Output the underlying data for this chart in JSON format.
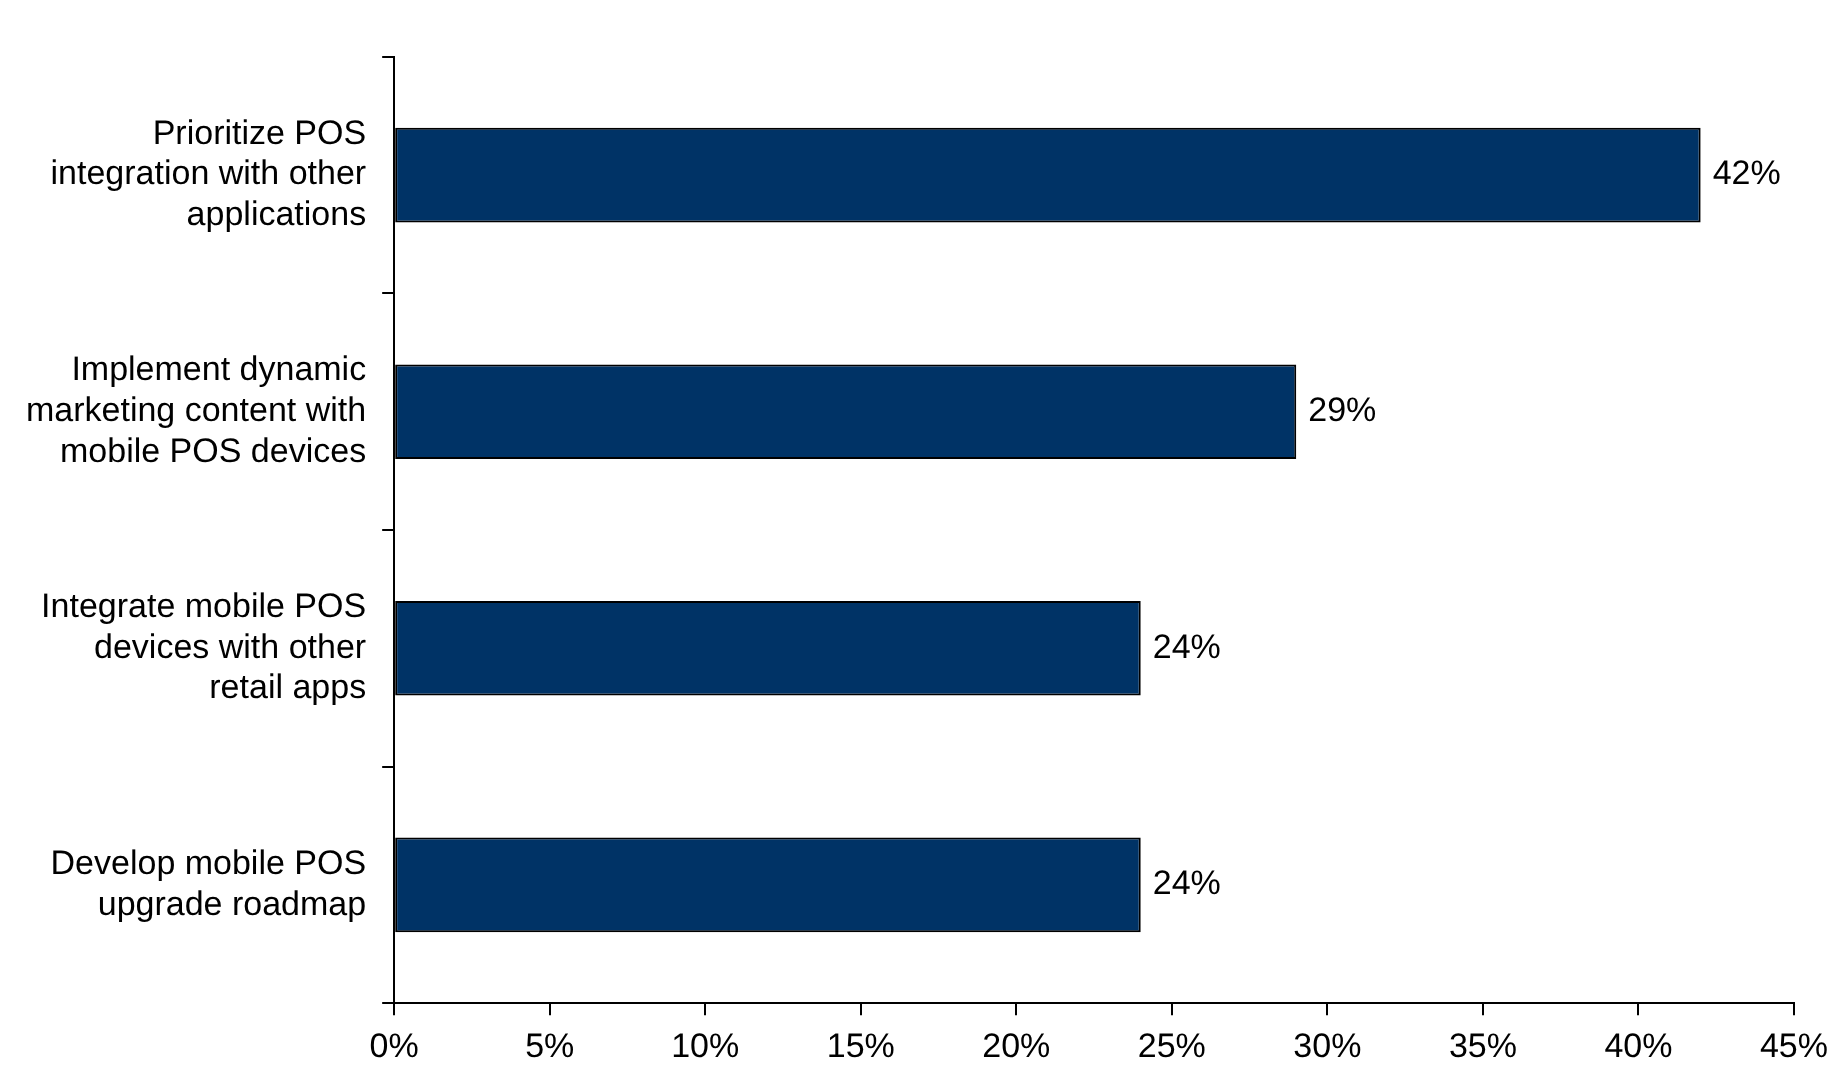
{
  "chart_data": {
    "type": "bar",
    "orientation": "horizontal",
    "categories": [
      "Prioritize POS integration with other applications",
      "Implement dynamic marketing content with mobile POS devices",
      "Integrate mobile POS devices with other retail apps",
      "Develop mobile POS upgrade roadmap"
    ],
    "values": [
      42,
      29,
      24,
      24
    ],
    "value_labels": [
      "42%",
      "29%",
      "24%",
      "24%"
    ],
    "color": "#003366",
    "xlim": [
      0,
      45
    ],
    "xticks": [
      {
        "value": 0,
        "label": "0%"
      },
      {
        "value": 5,
        "label": "5%"
      },
      {
        "value": 10,
        "label": "10%"
      },
      {
        "value": 15,
        "label": "15%"
      },
      {
        "value": 20,
        "label": "20%"
      },
      {
        "value": 25,
        "label": "25%"
      },
      {
        "value": 30,
        "label": "30%"
      },
      {
        "value": 35,
        "label": "35%"
      },
      {
        "value": 40,
        "label": "40%"
      },
      {
        "value": 45,
        "label": "45%"
      }
    ],
    "grid": false,
    "legend": false
  }
}
